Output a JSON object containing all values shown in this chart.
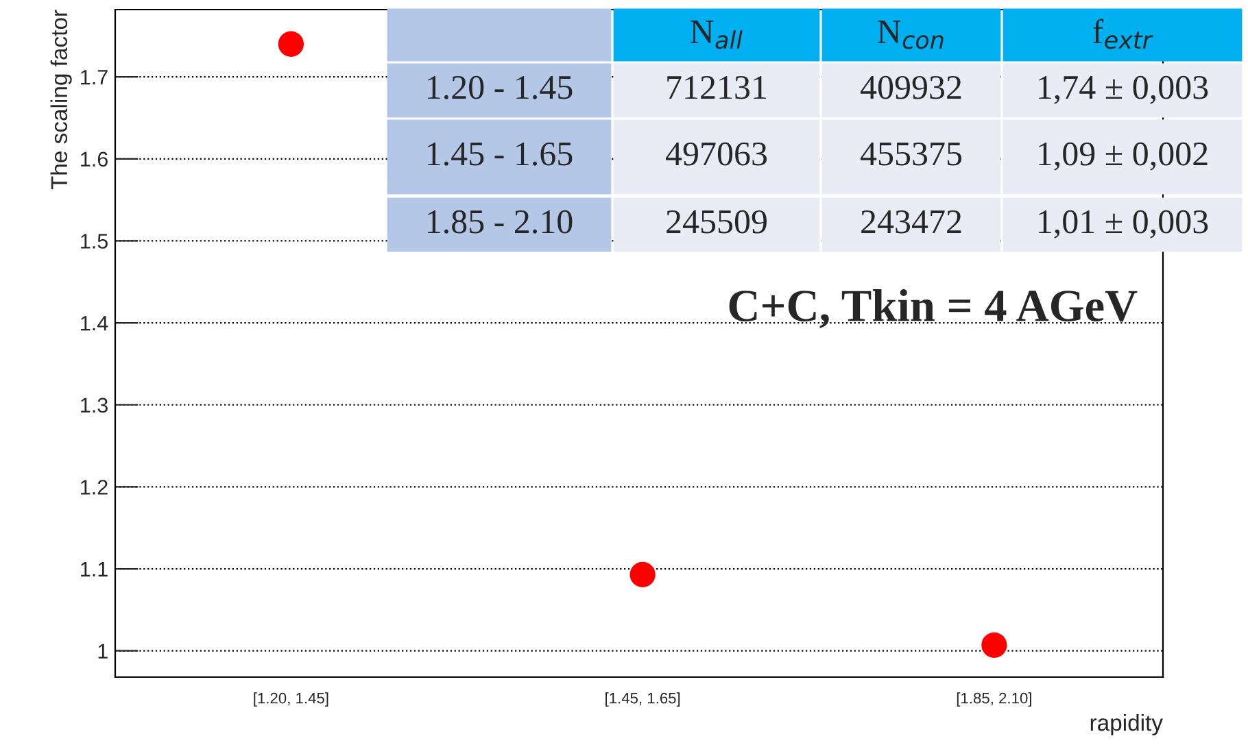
{
  "chart_data": [
    {
      "type": "scatter",
      "xlabel": "rapidity",
      "ylabel": "The scaling factor",
      "categories": [
        "[1.20, 1.45]",
        "[1.45, 1.65]",
        "[1.85, 2.10]"
      ],
      "series": [
        {
          "color": "#ff0000",
          "values": [
            1.74,
            1.093,
            1.007
          ]
        }
      ],
      "marker": "circle",
      "ylim": [
        0.968,
        1.782
      ],
      "yticks": [
        1,
        1.1,
        1.2,
        1.3,
        1.4,
        1.5,
        1.6,
        1.7
      ],
      "grid": "y",
      "legend": false,
      "annotations": [
        "C+C, Tkin = 4 AGeV"
      ]
    },
    {
      "type": "other",
      "categories": [
        null,
        "N$_{all}$",
        "N$_{con}$",
        "f$_{extr}$"
      ],
      "y_categories": [
        "1.20 - 1.45",
        "1.45 - 1.65",
        "1.85 - 2.10"
      ],
      "cell_labels": [
        [
          "712131",
          "409932",
          "1,74 ± 0,003"
        ],
        [
          "497063",
          "455375",
          "1,09 ± 0,002"
        ],
        [
          "245509",
          "243472",
          "1,01 ± 0,003"
        ]
      ]
    }
  ]
}
